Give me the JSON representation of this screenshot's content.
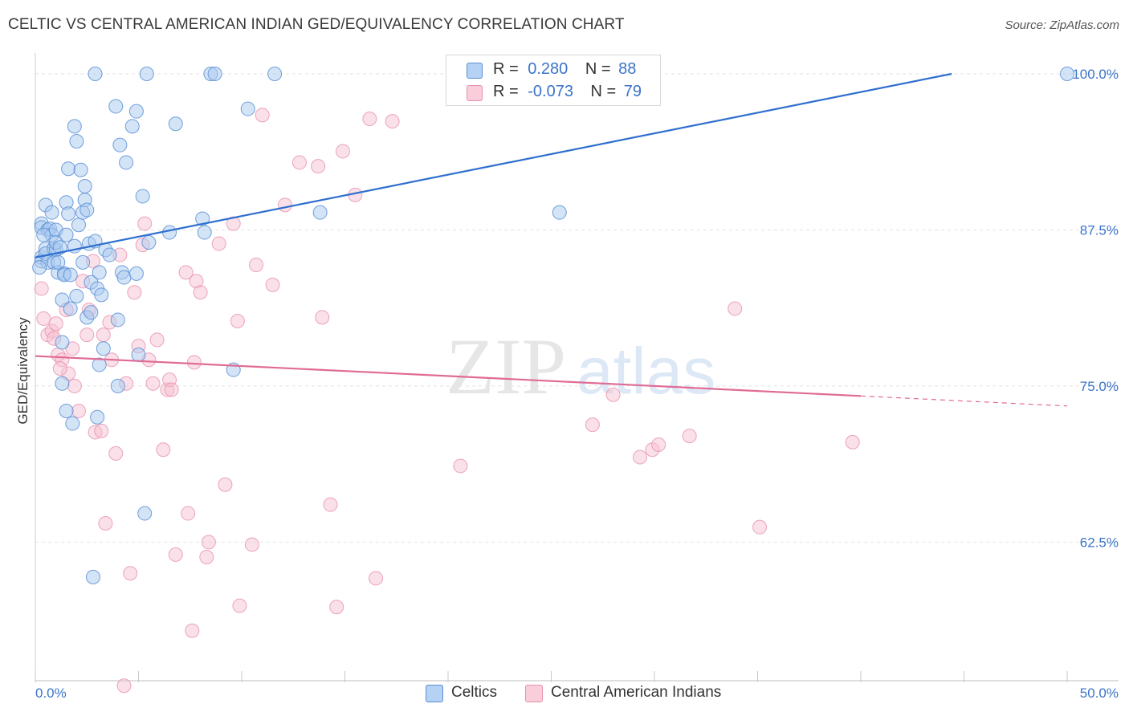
{
  "header": {
    "title": "CELTIC VS CENTRAL AMERICAN INDIAN GED/EQUIVALENCY CORRELATION CHART",
    "source": "Source: ZipAtlas.com"
  },
  "watermark": {
    "zip": "ZIP",
    "atlas": "atlas"
  },
  "legend": {
    "series1": {
      "r_label": "R =",
      "r_value": "0.280",
      "n_label": "N =",
      "n_value": "88"
    },
    "series2": {
      "r_label": "R =",
      "r_value": "-0.073",
      "n_label": "N =",
      "n_value": "79"
    }
  },
  "colors": {
    "celtic_fill": "#a9c9f0",
    "celtic_stroke": "#5b8fd6",
    "celtic_line": "#2f6fcf",
    "cai_fill": "#f6c1d1",
    "cai_stroke": "#e890ad",
    "cai_line": "#e06b95",
    "axis_text": "#3a73c9",
    "grid": "#e2e2e2"
  },
  "chart_data": {
    "type": "scatter",
    "title": "CELTIC VS CENTRAL AMERICAN INDIAN GED/EQUIVALENCY CORRELATION CHART",
    "xlabel": "",
    "ylabel": "GED/Equivalency",
    "xlim": [
      0,
      50
    ],
    "ylim": [
      51.4,
      100.9
    ],
    "x_tick_labels": [
      "0.0%",
      "50.0%"
    ],
    "y_ticks": [
      62.5,
      75.0,
      87.5,
      100.0
    ],
    "y_tick_labels": [
      "62.5%",
      "75.0%",
      "87.5%",
      "100.0%"
    ],
    "series": [
      {
        "name": "Celtics",
        "r": 0.28,
        "n": 88,
        "trend": {
          "x": [
            0,
            44.4
          ],
          "y": [
            85.3,
            100.0
          ]
        },
        "points": [
          [
            0.3,
            88.0
          ],
          [
            0.3,
            87.7
          ],
          [
            0.3,
            85.3
          ],
          [
            0.3,
            85.0
          ],
          [
            0.5,
            89.5
          ],
          [
            0.5,
            86.0
          ],
          [
            0.5,
            85.6
          ],
          [
            0.6,
            84.9
          ],
          [
            0.6,
            87.5
          ],
          [
            0.7,
            87.6
          ],
          [
            0.8,
            88.9
          ],
          [
            0.8,
            87.1
          ],
          [
            0.9,
            84.9
          ],
          [
            0.9,
            86.0
          ],
          [
            1.0,
            85.9
          ],
          [
            1.0,
            87.5
          ],
          [
            1.0,
            86.5
          ],
          [
            1.1,
            84.1
          ],
          [
            1.1,
            84.9
          ],
          [
            1.2,
            86.1
          ],
          [
            1.3,
            75.2
          ],
          [
            1.3,
            78.5
          ],
          [
            1.3,
            81.9
          ],
          [
            1.4,
            84.0
          ],
          [
            1.4,
            83.9
          ],
          [
            1.5,
            89.7
          ],
          [
            1.5,
            87.1
          ],
          [
            1.5,
            73.0
          ],
          [
            1.6,
            92.4
          ],
          [
            1.6,
            88.8
          ],
          [
            1.7,
            81.2
          ],
          [
            1.7,
            83.9
          ],
          [
            1.8,
            72.0
          ],
          [
            1.9,
            95.8
          ],
          [
            1.9,
            86.2
          ],
          [
            2.0,
            94.6
          ],
          [
            2.0,
            82.2
          ],
          [
            2.1,
            87.9
          ],
          [
            2.2,
            92.3
          ],
          [
            2.3,
            88.9
          ],
          [
            2.3,
            84.9
          ],
          [
            2.4,
            91.0
          ],
          [
            2.4,
            89.9
          ],
          [
            2.5,
            89.1
          ],
          [
            2.5,
            80.5
          ],
          [
            2.6,
            86.4
          ],
          [
            2.7,
            83.3
          ],
          [
            2.7,
            80.9
          ],
          [
            2.8,
            59.7
          ],
          [
            2.9,
            100.0
          ],
          [
            2.9,
            86.6
          ],
          [
            3.0,
            82.8
          ],
          [
            3.0,
            72.5
          ],
          [
            3.1,
            76.7
          ],
          [
            3.1,
            84.1
          ],
          [
            3.2,
            82.3
          ],
          [
            3.3,
            78.0
          ],
          [
            3.4,
            85.9
          ],
          [
            3.6,
            85.5
          ],
          [
            3.9,
            97.4
          ],
          [
            4.0,
            75.0
          ],
          [
            4.0,
            80.3
          ],
          [
            4.1,
            94.3
          ],
          [
            4.2,
            84.1
          ],
          [
            4.3,
            83.7
          ],
          [
            4.4,
            92.9
          ],
          [
            4.7,
            95.8
          ],
          [
            4.9,
            97.0
          ],
          [
            4.9,
            84.0
          ],
          [
            5.0,
            77.5
          ],
          [
            5.2,
            90.2
          ],
          [
            5.3,
            64.8
          ],
          [
            5.4,
            100.0
          ],
          [
            5.5,
            86.5
          ],
          [
            6.5,
            87.3
          ],
          [
            6.8,
            96.0
          ],
          [
            8.1,
            88.4
          ],
          [
            8.2,
            87.3
          ],
          [
            8.5,
            100.0
          ],
          [
            8.7,
            100.0
          ],
          [
            9.6,
            76.3
          ],
          [
            10.3,
            97.2
          ],
          [
            11.6,
            100.0
          ],
          [
            13.8,
            88.9
          ],
          [
            25.4,
            88.9
          ],
          [
            50.0,
            100.0
          ],
          [
            0.2,
            84.5
          ],
          [
            0.4,
            87.1
          ]
        ]
      },
      {
        "name": "Central American Indians",
        "r": -0.073,
        "n": 79,
        "trend": {
          "x": [
            0,
            40.0,
            50.0
          ],
          "y": [
            77.4,
            74.2,
            73.4
          ]
        },
        "points": [
          [
            0.3,
            82.8
          ],
          [
            0.4,
            80.4
          ],
          [
            0.6,
            79.1
          ],
          [
            0.8,
            79.4
          ],
          [
            1.0,
            80.0
          ],
          [
            1.1,
            77.5
          ],
          [
            1.3,
            77.1
          ],
          [
            1.5,
            81.1
          ],
          [
            1.6,
            76.0
          ],
          [
            1.8,
            78.0
          ],
          [
            1.9,
            75.0
          ],
          [
            2.1,
            73.0
          ],
          [
            2.3,
            83.4
          ],
          [
            2.5,
            79.1
          ],
          [
            2.6,
            81.1
          ],
          [
            2.8,
            85.0
          ],
          [
            2.9,
            71.3
          ],
          [
            3.2,
            71.4
          ],
          [
            3.3,
            79.1
          ],
          [
            3.4,
            64.0
          ],
          [
            3.6,
            80.1
          ],
          [
            3.7,
            77.1
          ],
          [
            3.9,
            69.6
          ],
          [
            4.1,
            85.5
          ],
          [
            4.3,
            51.0
          ],
          [
            4.4,
            75.2
          ],
          [
            4.6,
            60.0
          ],
          [
            4.8,
            82.5
          ],
          [
            5.0,
            78.2
          ],
          [
            5.2,
            86.3
          ],
          [
            5.3,
            88.0
          ],
          [
            5.5,
            77.1
          ],
          [
            5.7,
            75.2
          ],
          [
            5.9,
            78.7
          ],
          [
            6.2,
            69.9
          ],
          [
            6.4,
            74.7
          ],
          [
            6.5,
            75.5
          ],
          [
            6.6,
            74.7
          ],
          [
            6.8,
            61.5
          ],
          [
            7.3,
            84.1
          ],
          [
            7.4,
            64.8
          ],
          [
            7.6,
            55.4
          ],
          [
            7.7,
            76.9
          ],
          [
            7.8,
            83.4
          ],
          [
            8.0,
            82.5
          ],
          [
            8.3,
            61.3
          ],
          [
            8.4,
            62.5
          ],
          [
            8.9,
            86.4
          ],
          [
            9.2,
            67.1
          ],
          [
            9.6,
            88.0
          ],
          [
            9.8,
            80.2
          ],
          [
            9.9,
            57.4
          ],
          [
            10.5,
            62.3
          ],
          [
            10.7,
            84.7
          ],
          [
            11.0,
            96.7
          ],
          [
            11.5,
            83.1
          ],
          [
            12.1,
            89.5
          ],
          [
            12.8,
            92.9
          ],
          [
            13.7,
            92.6
          ],
          [
            13.9,
            80.5
          ],
          [
            14.3,
            65.5
          ],
          [
            14.6,
            57.3
          ],
          [
            14.9,
            93.8
          ],
          [
            15.5,
            90.3
          ],
          [
            16.2,
            96.4
          ],
          [
            16.5,
            59.6
          ],
          [
            17.3,
            96.2
          ],
          [
            20.6,
            68.6
          ],
          [
            27.0,
            71.9
          ],
          [
            28.0,
            74.3
          ],
          [
            29.3,
            69.3
          ],
          [
            29.9,
            69.9
          ],
          [
            30.2,
            70.3
          ],
          [
            31.7,
            71.0
          ],
          [
            33.9,
            81.2
          ],
          [
            35.1,
            63.7
          ],
          [
            39.6,
            70.5
          ],
          [
            1.2,
            76.4
          ],
          [
            0.9,
            78.8
          ]
        ]
      }
    ]
  },
  "bottom_legend": {
    "series1_label": "Celtics",
    "series2_label": "Central American Indians"
  }
}
